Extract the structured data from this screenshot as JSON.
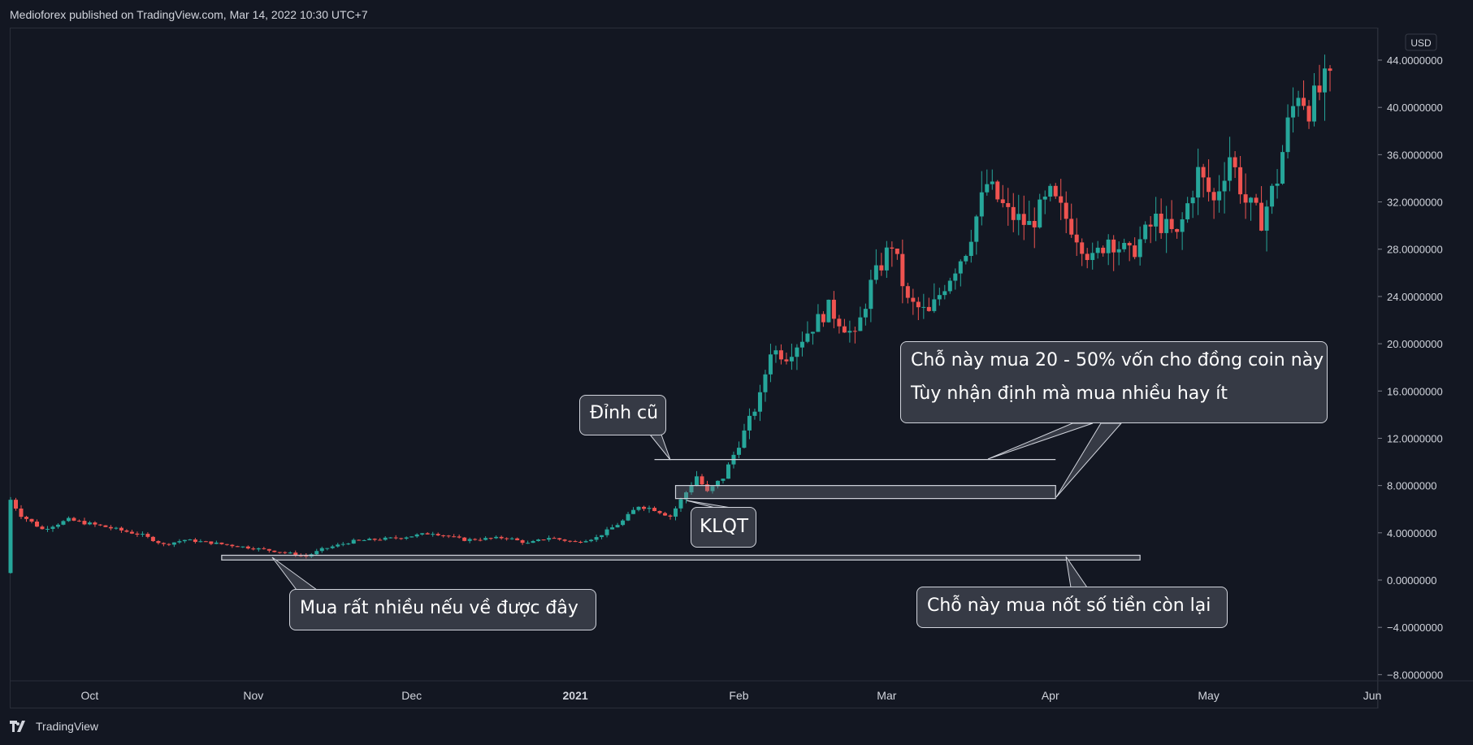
{
  "header": {
    "publish_info": "Medioforex published on TradingView.com, Mar 14, 2022 10:30 UTC+7"
  },
  "footer": {
    "brand": "TradingView"
  },
  "currency": "USD",
  "colors": {
    "up": "#26a69a",
    "down": "#ef5350",
    "background": "#131722",
    "text": "#d1d4dc",
    "grid": "#2a2e39"
  },
  "annotations": {
    "old_peak": "Đỉnh cũ",
    "klqt": "KLQT",
    "buy_lots": "Mua rất nhiều nếu về được đây",
    "buy_20_50": "Chỗ này mua 20 - 50% vốn cho đồng coin này",
    "depends": "Tùy nhận định mà mua nhiều hay ít",
    "buy_rest": "Chỗ này mua nốt số tiền còn lại"
  },
  "chart_data": {
    "type": "candlestick",
    "y_axis": {
      "ticks": [
        44,
        40,
        36,
        32,
        28,
        24,
        20,
        16,
        12,
        8,
        4,
        0,
        -4,
        -8
      ],
      "tick_labels": [
        "44.0000000",
        "40.0000000",
        "36.0000000",
        "32.0000000",
        "28.0000000",
        "24.0000000",
        "20.0000000",
        "16.0000000",
        "12.0000000",
        "8.0000000",
        "4.0000000",
        "0.0000000",
        "−4.0000000",
        "−8.0000000"
      ],
      "range": [
        -8,
        47
      ]
    },
    "x_axis": {
      "tick_labels": [
        "Oct",
        "Nov",
        "Dec",
        "2021",
        "Feb",
        "Mar",
        "Apr",
        "May",
        "Jun"
      ],
      "tick_dates": [
        "2020-10-01",
        "2020-11-01",
        "2020-12-01",
        "2021-01-01",
        "2021-02-01",
        "2021-03-01",
        "2021-04-01",
        "2021-05-01",
        "2021-06-01"
      ],
      "range": [
        "2020-09-16",
        "2021-06-01"
      ]
    },
    "levels": [
      {
        "name": "old-peak-line",
        "value": 10.2,
        "from": "2021-01-16",
        "to": "2021-04-02"
      },
      {
        "name": "klqt-zone",
        "low": 6.9,
        "high": 8.0,
        "from": "2021-01-20",
        "to": "2021-04-02"
      },
      {
        "name": "bottom-zone",
        "low": 1.7,
        "high": 2.1,
        "from": "2020-10-26",
        "to": "2021-04-18"
      }
    ],
    "price_path": [
      [
        "2020-09-16",
        0.6
      ],
      [
        "2020-09-17",
        6.8
      ],
      [
        "2020-09-19",
        5.5
      ],
      [
        "2020-09-23",
        4.3
      ],
      [
        "2020-09-28",
        5.1
      ],
      [
        "2020-10-05",
        4.5
      ],
      [
        "2020-10-12",
        3.8
      ],
      [
        "2020-10-16",
        3.0
      ],
      [
        "2020-10-20",
        3.4
      ],
      [
        "2020-10-26",
        3.1
      ],
      [
        "2020-11-02",
        2.7
      ],
      [
        "2020-11-07",
        2.4
      ],
      [
        "2020-11-12",
        2.0
      ],
      [
        "2020-11-15",
        2.6
      ],
      [
        "2020-11-21",
        3.3
      ],
      [
        "2020-11-30",
        3.6
      ],
      [
        "2020-12-06",
        4.0
      ],
      [
        "2020-12-12",
        3.4
      ],
      [
        "2020-12-20",
        3.6
      ],
      [
        "2020-12-24",
        3.1
      ],
      [
        "2020-12-28",
        3.6
      ],
      [
        "2021-01-02",
        3.2
      ],
      [
        "2021-01-06",
        3.6
      ],
      [
        "2021-01-11",
        5.0
      ],
      [
        "2021-01-14",
        6.3
      ],
      [
        "2021-01-17",
        6.0
      ],
      [
        "2021-01-20",
        5.4
      ],
      [
        "2021-01-25",
        8.8
      ],
      [
        "2021-01-27",
        7.4
      ],
      [
        "2021-01-30",
        8.7
      ],
      [
        "2021-02-03",
        12.5
      ],
      [
        "2021-02-06",
        15.5
      ],
      [
        "2021-02-08",
        19.5
      ],
      [
        "2021-02-11",
        19.0
      ],
      [
        "2021-02-15",
        21.0
      ],
      [
        "2021-02-19",
        23.0
      ],
      [
        "2021-02-24",
        20.5
      ],
      [
        "2021-02-27",
        25.0
      ],
      [
        "2021-03-03",
        28.5
      ],
      [
        "2021-03-06",
        23.5
      ],
      [
        "2021-03-10",
        22.5
      ],
      [
        "2021-03-13",
        25.0
      ],
      [
        "2021-03-17",
        28.0
      ],
      [
        "2021-03-21",
        33.5
      ],
      [
        "2021-03-25",
        31.0
      ],
      [
        "2021-03-29",
        30.0
      ],
      [
        "2021-04-02",
        32.5
      ],
      [
        "2021-04-06",
        30.0
      ],
      [
        "2021-04-10",
        27.0
      ],
      [
        "2021-04-13",
        29.0
      ],
      [
        "2021-04-17",
        27.5
      ],
      [
        "2021-04-22",
        30.5
      ],
      [
        "2021-04-26",
        29.0
      ],
      [
        "2021-04-30",
        34.5
      ],
      [
        "2021-05-03",
        32.0
      ],
      [
        "2021-05-06",
        36.0
      ],
      [
        "2021-05-09",
        32.0
      ],
      [
        "2021-05-12",
        30.5
      ],
      [
        "2021-05-15",
        34.0
      ],
      [
        "2021-05-17",
        38.5
      ],
      [
        "2021-05-19",
        41.5
      ],
      [
        "2021-05-21",
        40.0
      ],
      [
        "2021-05-24",
        42.0
      ]
    ]
  }
}
